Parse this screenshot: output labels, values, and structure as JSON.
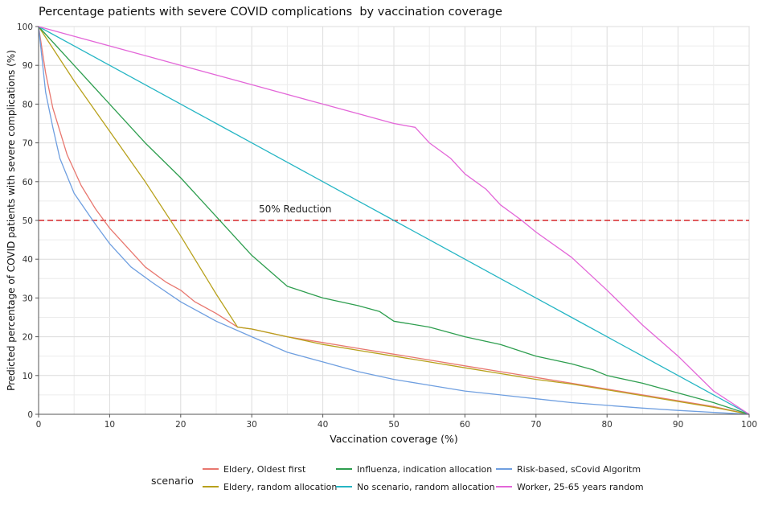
{
  "chart_data": {
    "type": "line",
    "title": "Percentage patients with severe COVID complications  by vaccination coverage",
    "xlabel": "Vaccination coverage (%)",
    "ylabel": "Predicted percentage of COVID patients with severe complications (%)",
    "xlim": [
      0,
      100
    ],
    "ylim": [
      0,
      100
    ],
    "x_ticks": [
      "0",
      "10",
      "20",
      "30",
      "40",
      "50",
      "60",
      "70",
      "80",
      "90",
      "100"
    ],
    "y_ticks": [
      "0",
      "10",
      "20",
      "30",
      "40",
      "50",
      "60",
      "70",
      "80",
      "90",
      "100"
    ],
    "grid": true,
    "reference_line": {
      "y": 50,
      "label": "50% Reduction",
      "color": "#d62728",
      "style": "dashed"
    },
    "legend_title": "scenario",
    "legend_position": "bottom",
    "series": [
      {
        "name": "Eldery, Oldest first",
        "color": "#e8776f",
        "points": [
          [
            0,
            100
          ],
          [
            1,
            88
          ],
          [
            2,
            79
          ],
          [
            4,
            67
          ],
          [
            6,
            59
          ],
          [
            8,
            53
          ],
          [
            10,
            48
          ],
          [
            12,
            44
          ],
          [
            15,
            38
          ],
          [
            18,
            34
          ],
          [
            20,
            32
          ],
          [
            22,
            29
          ],
          [
            25,
            26
          ],
          [
            28,
            22.5
          ],
          [
            30,
            22
          ],
          [
            35,
            20
          ],
          [
            40,
            18.5
          ],
          [
            45,
            17
          ],
          [
            50,
            15.5
          ],
          [
            55,
            14
          ],
          [
            60,
            12.5
          ],
          [
            65,
            11
          ],
          [
            70,
            9.5
          ],
          [
            75,
            8
          ],
          [
            80,
            6.5
          ],
          [
            85,
            5
          ],
          [
            90,
            3.5
          ],
          [
            95,
            2
          ],
          [
            100,
            0
          ]
        ]
      },
      {
        "name": "Eldery, random allocation",
        "color": "#b8a11c",
        "points": [
          [
            0,
            100
          ],
          [
            5,
            86
          ],
          [
            10,
            73
          ],
          [
            15,
            60
          ],
          [
            20,
            46
          ],
          [
            25,
            31
          ],
          [
            28,
            22.5
          ],
          [
            30,
            22
          ],
          [
            35,
            20
          ],
          [
            40,
            18
          ],
          [
            45,
            16.5
          ],
          [
            50,
            15
          ],
          [
            55,
            13.5
          ],
          [
            60,
            12
          ],
          [
            65,
            10.5
          ],
          [
            70,
            9
          ],
          [
            75,
            7.8
          ],
          [
            80,
            6.3
          ],
          [
            85,
            4.8
          ],
          [
            90,
            3.3
          ],
          [
            95,
            1.8
          ],
          [
            100,
            0
          ]
        ]
      },
      {
        "name": "Influenza, indication allocation",
        "color": "#2e9e4f",
        "points": [
          [
            0,
            100
          ],
          [
            5,
            90
          ],
          [
            10,
            80
          ],
          [
            15,
            70
          ],
          [
            20,
            61
          ],
          [
            25,
            51
          ],
          [
            30,
            41
          ],
          [
            35,
            33
          ],
          [
            40,
            30
          ],
          [
            45,
            28
          ],
          [
            48,
            26.5
          ],
          [
            50,
            24
          ],
          [
            55,
            22.5
          ],
          [
            60,
            20
          ],
          [
            65,
            18
          ],
          [
            70,
            15
          ],
          [
            75,
            13
          ],
          [
            78,
            11.5
          ],
          [
            80,
            10
          ],
          [
            85,
            8
          ],
          [
            90,
            5.5
          ],
          [
            95,
            3
          ],
          [
            100,
            0
          ]
        ]
      },
      {
        "name": "No scenario, random allocation",
        "color": "#25b5c4",
        "points": [
          [
            0,
            100
          ],
          [
            5,
            95
          ],
          [
            10,
            90
          ],
          [
            15,
            85
          ],
          [
            20,
            80
          ],
          [
            25,
            75
          ],
          [
            30,
            70
          ],
          [
            35,
            65
          ],
          [
            40,
            60
          ],
          [
            45,
            55
          ],
          [
            50,
            50
          ],
          [
            55,
            45
          ],
          [
            60,
            40
          ],
          [
            65,
            35
          ],
          [
            70,
            30
          ],
          [
            75,
            25
          ],
          [
            80,
            20
          ],
          [
            85,
            15
          ],
          [
            90,
            10
          ],
          [
            95,
            5
          ],
          [
            100,
            0
          ]
        ]
      },
      {
        "name": "Risk-based, sCovid Algoritm",
        "color": "#6f9fe0",
        "points": [
          [
            0,
            100
          ],
          [
            1,
            83
          ],
          [
            2,
            74
          ],
          [
            3,
            66
          ],
          [
            5,
            57
          ],
          [
            8,
            49
          ],
          [
            10,
            44
          ],
          [
            13,
            38
          ],
          [
            16,
            34
          ],
          [
            20,
            29
          ],
          [
            25,
            24
          ],
          [
            30,
            20
          ],
          [
            35,
            16
          ],
          [
            40,
            13.5
          ],
          [
            45,
            11
          ],
          [
            50,
            9
          ],
          [
            55,
            7.5
          ],
          [
            60,
            6
          ],
          [
            65,
            5
          ],
          [
            70,
            4
          ],
          [
            75,
            3
          ],
          [
            80,
            2.3
          ],
          [
            85,
            1.6
          ],
          [
            90,
            1
          ],
          [
            95,
            0.5
          ],
          [
            100,
            0
          ]
        ]
      },
      {
        "name": "Worker, 25-65 years random",
        "color": "#e366d8",
        "points": [
          [
            0,
            100
          ],
          [
            5,
            97.5
          ],
          [
            10,
            95
          ],
          [
            15,
            92.5
          ],
          [
            20,
            90
          ],
          [
            25,
            87.5
          ],
          [
            30,
            85
          ],
          [
            35,
            82.5
          ],
          [
            40,
            80
          ],
          [
            45,
            77.5
          ],
          [
            50,
            75
          ],
          [
            53,
            74
          ],
          [
            55,
            70
          ],
          [
            58,
            66
          ],
          [
            60,
            62
          ],
          [
            63,
            58
          ],
          [
            65,
            54
          ],
          [
            68,
            50
          ],
          [
            70,
            47
          ],
          [
            75,
            40.5
          ],
          [
            80,
            32
          ],
          [
            85,
            23
          ],
          [
            90,
            15
          ],
          [
            95,
            6
          ],
          [
            100,
            0
          ]
        ]
      }
    ]
  }
}
